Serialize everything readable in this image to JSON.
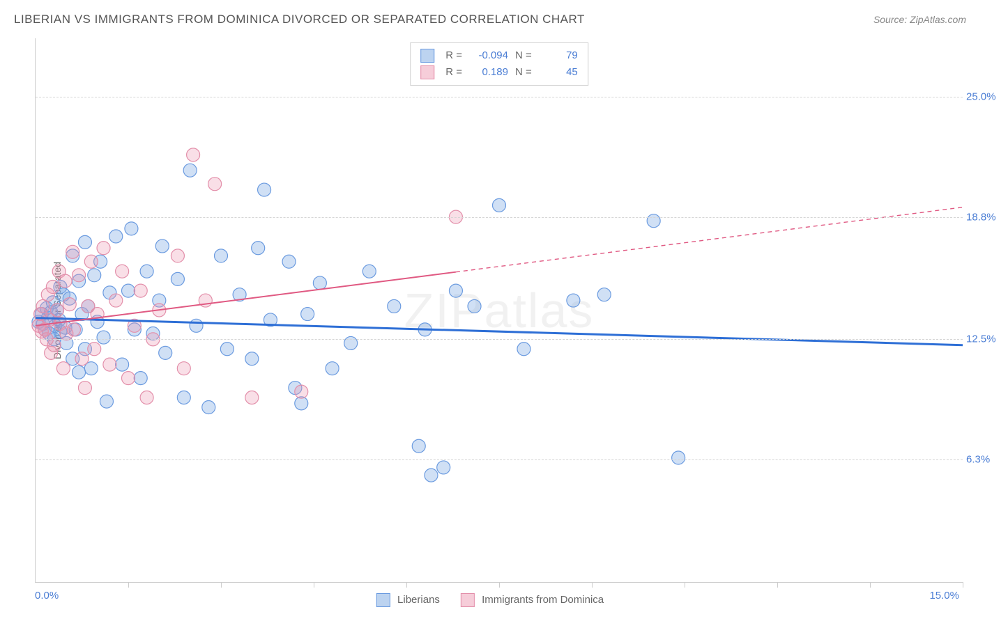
{
  "header": {
    "title": "LIBERIAN VS IMMIGRANTS FROM DOMINICA DIVORCED OR SEPARATED CORRELATION CHART",
    "source_prefix": "Source: ",
    "source_name": "ZipAtlas.com"
  },
  "chart": {
    "type": "scatter",
    "y_axis": {
      "title": "Divorced or Separated",
      "min": 0,
      "max": 28,
      "ticks": [
        {
          "value": 6.3,
          "label": "6.3%"
        },
        {
          "value": 12.5,
          "label": "12.5%"
        },
        {
          "value": 18.8,
          "label": "18.8%"
        },
        {
          "value": 25.0,
          "label": "25.0%"
        }
      ],
      "label_color": "#4a7dd4",
      "grid_color": "#d5d5d5"
    },
    "x_axis": {
      "min": 0,
      "max": 15,
      "left_label": "0.0%",
      "right_label": "15.0%",
      "tick_positions": [
        1.5,
        3.0,
        4.5,
        6.0,
        7.5,
        9.0,
        10.5,
        12.0,
        13.5,
        15.0
      ],
      "label_color": "#4a7dd4"
    },
    "series": [
      {
        "key": "liberians",
        "label": "Liberians",
        "fill": "rgba(120,165,225,0.35)",
        "stroke": "#6b9be0",
        "swatch_fill": "#bcd3f0",
        "swatch_border": "#6b9be0",
        "marker_radius": 9.5,
        "trend": {
          "x1": 0,
          "y1": 13.6,
          "x2": 15,
          "y2": 12.2,
          "color": "#2e6fd6",
          "width": 3,
          "solid_until_x": 15
        },
        "R": "-0.094",
        "N": "79",
        "points": [
          [
            0.05,
            13.4
          ],
          [
            0.1,
            13.8
          ],
          [
            0.12,
            13.3
          ],
          [
            0.15,
            13.0
          ],
          [
            0.18,
            14.1
          ],
          [
            0.2,
            13.6
          ],
          [
            0.22,
            12.8
          ],
          [
            0.25,
            13.9
          ],
          [
            0.28,
            14.4
          ],
          [
            0.3,
            12.5
          ],
          [
            0.32,
            13.2
          ],
          [
            0.35,
            14.0
          ],
          [
            0.38,
            13.5
          ],
          [
            0.4,
            12.9
          ],
          [
            0.4,
            15.2
          ],
          [
            0.45,
            14.8
          ],
          [
            0.48,
            13.1
          ],
          [
            0.5,
            12.3
          ],
          [
            0.55,
            14.6
          ],
          [
            0.6,
            11.5
          ],
          [
            0.6,
            16.8
          ],
          [
            0.65,
            13.0
          ],
          [
            0.7,
            15.5
          ],
          [
            0.7,
            10.8
          ],
          [
            0.75,
            13.8
          ],
          [
            0.8,
            12.0
          ],
          [
            0.8,
            17.5
          ],
          [
            0.85,
            14.2
          ],
          [
            0.9,
            11.0
          ],
          [
            0.95,
            15.8
          ],
          [
            1.0,
            13.4
          ],
          [
            1.05,
            16.5
          ],
          [
            1.1,
            12.6
          ],
          [
            1.15,
            9.3
          ],
          [
            1.2,
            14.9
          ],
          [
            1.3,
            17.8
          ],
          [
            1.4,
            11.2
          ],
          [
            1.5,
            15.0
          ],
          [
            1.55,
            18.2
          ],
          [
            1.6,
            13.0
          ],
          [
            1.7,
            10.5
          ],
          [
            1.8,
            16.0
          ],
          [
            1.9,
            12.8
          ],
          [
            2.0,
            14.5
          ],
          [
            2.05,
            17.3
          ],
          [
            2.1,
            11.8
          ],
          [
            2.3,
            15.6
          ],
          [
            2.4,
            9.5
          ],
          [
            2.5,
            21.2
          ],
          [
            2.6,
            13.2
          ],
          [
            2.8,
            9.0
          ],
          [
            3.0,
            16.8
          ],
          [
            3.1,
            12.0
          ],
          [
            3.3,
            14.8
          ],
          [
            3.5,
            11.5
          ],
          [
            3.6,
            17.2
          ],
          [
            3.7,
            20.2
          ],
          [
            3.8,
            13.5
          ],
          [
            4.1,
            16.5
          ],
          [
            4.2,
            10.0
          ],
          [
            4.3,
            9.2
          ],
          [
            4.4,
            13.8
          ],
          [
            4.6,
            15.4
          ],
          [
            4.8,
            11.0
          ],
          [
            5.1,
            12.3
          ],
          [
            5.4,
            16.0
          ],
          [
            5.8,
            14.2
          ],
          [
            6.2,
            7.0
          ],
          [
            6.3,
            13.0
          ],
          [
            6.4,
            5.5
          ],
          [
            6.6,
            5.9
          ],
          [
            6.8,
            15.0
          ],
          [
            7.1,
            14.2
          ],
          [
            7.5,
            19.4
          ],
          [
            7.9,
            12.0
          ],
          [
            8.7,
            14.5
          ],
          [
            9.2,
            14.8
          ],
          [
            10.0,
            18.6
          ],
          [
            10.4,
            6.4
          ]
        ]
      },
      {
        "key": "dominica",
        "label": "Immigrants from Dominica",
        "fill": "rgba(235,150,175,0.30)",
        "stroke": "#e38faa",
        "swatch_fill": "#f6cdd9",
        "swatch_border": "#e38faa",
        "marker_radius": 9.5,
        "trend": {
          "x1": 0,
          "y1": 13.2,
          "x2": 15,
          "y2": 19.3,
          "color": "#e05982",
          "width": 2,
          "solid_until_x": 6.8
        },
        "R": "0.189",
        "N": "45",
        "points": [
          [
            0.05,
            13.2
          ],
          [
            0.08,
            13.8
          ],
          [
            0.1,
            12.9
          ],
          [
            0.12,
            14.2
          ],
          [
            0.15,
            13.0
          ],
          [
            0.18,
            12.5
          ],
          [
            0.2,
            14.8
          ],
          [
            0.22,
            13.5
          ],
          [
            0.25,
            11.8
          ],
          [
            0.28,
            15.2
          ],
          [
            0.3,
            12.2
          ],
          [
            0.35,
            14.0
          ],
          [
            0.38,
            16.0
          ],
          [
            0.4,
            13.3
          ],
          [
            0.45,
            11.0
          ],
          [
            0.48,
            15.5
          ],
          [
            0.5,
            12.8
          ],
          [
            0.55,
            14.3
          ],
          [
            0.6,
            17.0
          ],
          [
            0.62,
            13.0
          ],
          [
            0.7,
            15.8
          ],
          [
            0.75,
            11.5
          ],
          [
            0.8,
            10.0
          ],
          [
            0.85,
            14.2
          ],
          [
            0.9,
            16.5
          ],
          [
            0.95,
            12.0
          ],
          [
            1.0,
            13.8
          ],
          [
            1.1,
            17.2
          ],
          [
            1.2,
            11.2
          ],
          [
            1.3,
            14.5
          ],
          [
            1.4,
            16.0
          ],
          [
            1.5,
            10.5
          ],
          [
            1.6,
            13.2
          ],
          [
            1.7,
            15.0
          ],
          [
            1.8,
            9.5
          ],
          [
            1.9,
            12.5
          ],
          [
            2.0,
            14.0
          ],
          [
            2.3,
            16.8
          ],
          [
            2.4,
            11.0
          ],
          [
            2.55,
            22.0
          ],
          [
            2.75,
            14.5
          ],
          [
            2.9,
            20.5
          ],
          [
            3.5,
            9.5
          ],
          [
            4.3,
            9.8
          ],
          [
            6.8,
            18.8
          ]
        ]
      }
    ],
    "top_legend": {
      "R_label": "R =",
      "N_label": "N ="
    },
    "watermark": "ZIPatlas",
    "background_color": "#ffffff"
  },
  "bottom_legend": {
    "items": [
      {
        "series": "liberians"
      },
      {
        "series": "dominica"
      }
    ]
  }
}
